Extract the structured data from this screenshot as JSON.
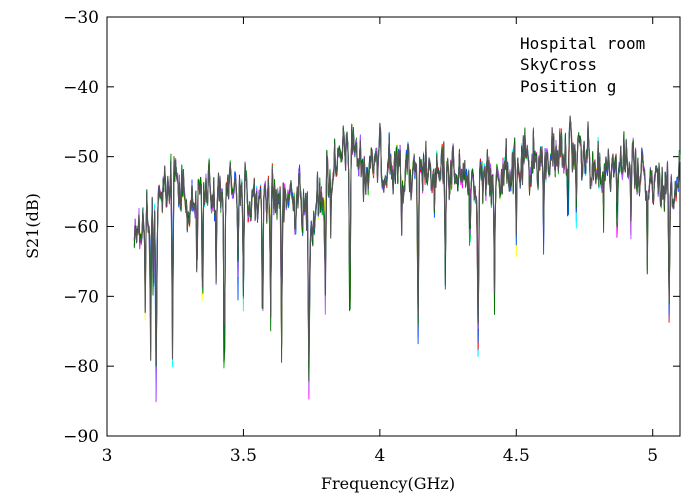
{
  "chart_data": {
    "type": "line",
    "title": "",
    "xlabel": "Frequency(GHz)",
    "ylabel": "S21(dB)",
    "xlim": [
      3.0,
      5.1
    ],
    "ylim": [
      -90,
      -30
    ],
    "xticks": [
      3.0,
      3.5,
      4.0,
      4.5,
      5.0
    ],
    "xtick_labels": [
      "3",
      "3.5",
      "4",
      "4.5",
      "5"
    ],
    "yticks": [
      -90,
      -80,
      -70,
      -60,
      -50,
      -40,
      -30
    ],
    "ytick_labels": [
      "−90",
      "−80",
      "−70",
      "−60",
      "−50",
      "−40",
      "−30"
    ],
    "grid": false,
    "legend": "none",
    "annotations": [
      "Hospital room",
      "SkyCross",
      "Position g"
    ],
    "x_range_of_data": [
      3.1,
      5.1
    ],
    "envelope": {
      "x": [
        3.1,
        3.13,
        3.2,
        3.25,
        3.3,
        3.35,
        3.4,
        3.45,
        3.5,
        3.55,
        3.6,
        3.65,
        3.7,
        3.75,
        3.8,
        3.85,
        3.9,
        3.95,
        4.0,
        4.1,
        4.2,
        4.3,
        4.4,
        4.5,
        4.6,
        4.7,
        4.8,
        4.9,
        5.0,
        5.1
      ],
      "y": [
        -55,
        -52,
        -49,
        -45,
        -52,
        -47,
        -49,
        -47,
        -48,
        -51,
        -48,
        -50,
        -49,
        -53,
        -47,
        -44,
        -42,
        -45,
        -44,
        -46,
        -46,
        -46,
        -47,
        -45,
        -44,
        -42,
        -45,
        -44,
        -47,
        -47
      ]
    },
    "dips": [
      {
        "x": 3.14,
        "y": -70
      },
      {
        "x": 3.16,
        "y": -76
      },
      {
        "x": 3.17,
        "y": -70
      },
      {
        "x": 3.18,
        "y": -82
      },
      {
        "x": 3.24,
        "y": -76
      },
      {
        "x": 3.27,
        "y": -60
      },
      {
        "x": 3.33,
        "y": -66
      },
      {
        "x": 3.35,
        "y": -72
      },
      {
        "x": 3.4,
        "y": -67
      },
      {
        "x": 3.43,
        "y": -85
      },
      {
        "x": 3.48,
        "y": -67
      },
      {
        "x": 3.5,
        "y": -69
      },
      {
        "x": 3.57,
        "y": -74
      },
      {
        "x": 3.6,
        "y": -71
      },
      {
        "x": 3.64,
        "y": -76
      },
      {
        "x": 3.69,
        "y": -64
      },
      {
        "x": 3.74,
        "y": -82
      },
      {
        "x": 3.8,
        "y": -70
      },
      {
        "x": 3.82,
        "y": -58
      },
      {
        "x": 3.89,
        "y": -77
      },
      {
        "x": 3.94,
        "y": -56
      },
      {
        "x": 4.01,
        "y": -57
      },
      {
        "x": 4.08,
        "y": -59
      },
      {
        "x": 4.14,
        "y": -74
      },
      {
        "x": 4.2,
        "y": -58
      },
      {
        "x": 4.24,
        "y": -67
      },
      {
        "x": 4.33,
        "y": -63
      },
      {
        "x": 4.36,
        "y": -76
      },
      {
        "x": 4.42,
        "y": -69
      },
      {
        "x": 4.5,
        "y": -60
      },
      {
        "x": 4.6,
        "y": -60
      },
      {
        "x": 4.69,
        "y": -58
      },
      {
        "x": 4.72,
        "y": -57
      },
      {
        "x": 4.82,
        "y": -58
      },
      {
        "x": 4.87,
        "y": -62
      },
      {
        "x": 4.92,
        "y": -59
      },
      {
        "x": 4.98,
        "y": -64
      },
      {
        "x": 5.03,
        "y": -60
      },
      {
        "x": 5.06,
        "y": -71
      }
    ],
    "series": [
      {
        "color": "#ffff00"
      },
      {
        "color": "#ff00ff"
      },
      {
        "color": "#00ffff"
      },
      {
        "color": "#ff0000"
      },
      {
        "color": "#00b000"
      },
      {
        "color": "#0050ff"
      },
      {
        "color": "#b050ff"
      },
      {
        "color": "#007000"
      },
      {
        "color": "#555555"
      }
    ]
  }
}
